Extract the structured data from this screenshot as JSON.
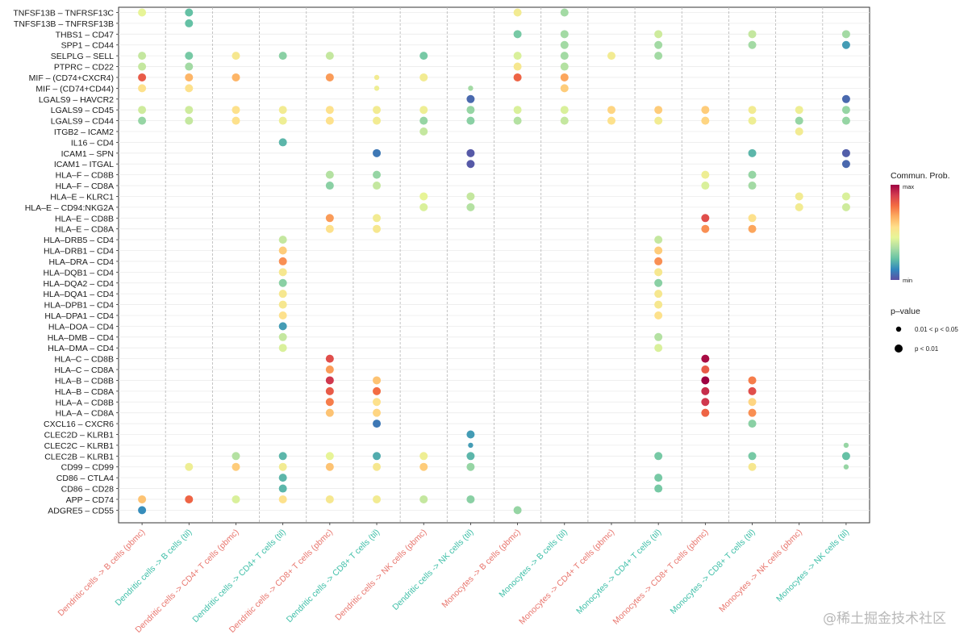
{
  "chart_data": {
    "type": "scatter",
    "title": "",
    "xlabel": "",
    "ylabel": "",
    "grid": true,
    "legend_position": "right",
    "categories": [
      "Dendritic cells -> B cells (pbmc)",
      "Dendritic cells -> B cells (til)",
      "Dendritic cells -> CD4+ T cells (pbmc)",
      "Dendritic cells -> CD4+ T cells (til)",
      "Dendritic cells -> CD8+ T cells (pbmc)",
      "Dendritic cells -> CD8+ T cells (til)",
      "Dendritic cells -> NK cells (pbmc)",
      "Dendritic cells -> NK cells (til)",
      "Monocytes -> B cells (pbmc)",
      "Monocytes -> B cells (til)",
      "Monocytes -> CD4+ T cells (pbmc)",
      "Monocytes -> CD4+ T cells (til)",
      "Monocytes -> CD8+ T cells (pbmc)",
      "Monocytes -> CD8+ T cells (til)",
      "Monocytes -> NK cells (pbmc)",
      "Monocytes -> NK cells (til)"
    ],
    "category_colors": [
      "#e8766e",
      "#3fbfa8",
      "#e8766e",
      "#3fbfa8",
      "#e8766e",
      "#3fbfa8",
      "#e8766e",
      "#3fbfa8",
      "#e8766e",
      "#3fbfa8",
      "#e8766e",
      "#3fbfa8",
      "#e8766e",
      "#3fbfa8",
      "#e8766e",
      "#3fbfa8"
    ],
    "pairs": [
      "TNFSF13B – TNFRSF13C",
      "TNFSF13B – TNFRSF13B",
      "THBS1 – CD47",
      "SPP1 – CD44",
      "SELPLG – SELL",
      "PTPRC – CD22",
      "MIF – (CD74+CXCR4)",
      "MIF – (CD74+CD44)",
      "LGALS9 – HAVCR2",
      "LGALS9 – CD45",
      "LGALS9 – CD44",
      "ITGB2 – ICAM2",
      "IL16 – CD4",
      "ICAM1 – SPN",
      "ICAM1 – ITGAL",
      "HLA–F – CD8B",
      "HLA–F – CD8A",
      "HLA–E – KLRC1",
      "HLA–E – CD94:NKG2A",
      "HLA–E – CD8B",
      "HLA–E – CD8A",
      "HLA–DRB5 – CD4",
      "HLA–DRB1 – CD4",
      "HLA–DRA – CD4",
      "HLA–DQB1 – CD4",
      "HLA–DQA2 – CD4",
      "HLA–DQA1 – CD4",
      "HLA–DPB1 – CD4",
      "HLA–DPA1 – CD4",
      "HLA–DOA – CD4",
      "HLA–DMB – CD4",
      "HLA–DMA – CD4",
      "HLA–C – CD8B",
      "HLA–C – CD8A",
      "HLA–B – CD8B",
      "HLA–B – CD8A",
      "HLA–A – CD8B",
      "HLA–A – CD8A",
      "CXCL16 – CXCR6",
      "CLEC2D – KLRB1",
      "CLEC2C – KLRB1",
      "CLEC2B – KLRB1",
      "CD99 – CD99",
      "CD86 – CTLA4",
      "CD86 – CD28",
      "APP – CD74",
      "ADGRE5 – CD55"
    ],
    "points_note": "[x, y, prob, size] with x = category index, y = pair index, prob = communication probability on a 0 (min) .. 1 (max) scale, size 1 = p < 0.01, 0 = 0.01 < p < 0.05",
    "points": [
      [
        0,
        0,
        0.45,
        1
      ],
      [
        1,
        0,
        0.22,
        1
      ],
      [
        8,
        0,
        0.5,
        1
      ],
      [
        9,
        0,
        0.32,
        1
      ],
      [
        1,
        1,
        0.22,
        1
      ],
      [
        8,
        2,
        0.25,
        1
      ],
      [
        9,
        2,
        0.32,
        1
      ],
      [
        11,
        2,
        0.4,
        1
      ],
      [
        13,
        2,
        0.38,
        1
      ],
      [
        15,
        2,
        0.32,
        1
      ],
      [
        9,
        3,
        0.32,
        1
      ],
      [
        11,
        3,
        0.32,
        1
      ],
      [
        13,
        3,
        0.32,
        1
      ],
      [
        15,
        3,
        0.15,
        1
      ],
      [
        0,
        4,
        0.38,
        1
      ],
      [
        1,
        4,
        0.25,
        1
      ],
      [
        2,
        4,
        0.52,
        1
      ],
      [
        3,
        4,
        0.28,
        1
      ],
      [
        4,
        4,
        0.38,
        1
      ],
      [
        6,
        4,
        0.25,
        1
      ],
      [
        8,
        4,
        0.42,
        1
      ],
      [
        9,
        4,
        0.32,
        1
      ],
      [
        10,
        4,
        0.5,
        1
      ],
      [
        11,
        4,
        0.32,
        1
      ],
      [
        0,
        5,
        0.38,
        1
      ],
      [
        1,
        5,
        0.32,
        1
      ],
      [
        8,
        5,
        0.52,
        1
      ],
      [
        9,
        5,
        0.35,
        1
      ],
      [
        0,
        6,
        0.82,
        1
      ],
      [
        1,
        6,
        0.65,
        1
      ],
      [
        2,
        6,
        0.65,
        1
      ],
      [
        4,
        6,
        0.7,
        1
      ],
      [
        5,
        6,
        0.5,
        0
      ],
      [
        6,
        6,
        0.5,
        1
      ],
      [
        8,
        6,
        0.8,
        1
      ],
      [
        9,
        6,
        0.68,
        1
      ],
      [
        0,
        7,
        0.55,
        1
      ],
      [
        1,
        7,
        0.55,
        1
      ],
      [
        5,
        7,
        0.48,
        0
      ],
      [
        7,
        7,
        0.32,
        0
      ],
      [
        9,
        7,
        0.6,
        1
      ],
      [
        7,
        8,
        0.05,
        1
      ],
      [
        15,
        8,
        0.05,
        1
      ],
      [
        0,
        9,
        0.4,
        1
      ],
      [
        1,
        9,
        0.4,
        1
      ],
      [
        2,
        9,
        0.55,
        1
      ],
      [
        3,
        9,
        0.5,
        1
      ],
      [
        4,
        9,
        0.55,
        1
      ],
      [
        5,
        9,
        0.5,
        1
      ],
      [
        6,
        9,
        0.48,
        1
      ],
      [
        7,
        9,
        0.3,
        1
      ],
      [
        8,
        9,
        0.42,
        1
      ],
      [
        9,
        9,
        0.42,
        1
      ],
      [
        10,
        9,
        0.58,
        1
      ],
      [
        11,
        9,
        0.6,
        1
      ],
      [
        12,
        9,
        0.6,
        1
      ],
      [
        13,
        9,
        0.5,
        1
      ],
      [
        14,
        9,
        0.48,
        1
      ],
      [
        15,
        9,
        0.3,
        1
      ],
      [
        0,
        10,
        0.3,
        1
      ],
      [
        1,
        10,
        0.38,
        1
      ],
      [
        2,
        10,
        0.55,
        1
      ],
      [
        3,
        10,
        0.48,
        1
      ],
      [
        4,
        10,
        0.55,
        1
      ],
      [
        5,
        10,
        0.5,
        1
      ],
      [
        6,
        10,
        0.3,
        1
      ],
      [
        7,
        10,
        0.28,
        1
      ],
      [
        8,
        10,
        0.35,
        1
      ],
      [
        9,
        10,
        0.38,
        1
      ],
      [
        10,
        10,
        0.55,
        1
      ],
      [
        11,
        10,
        0.5,
        1
      ],
      [
        12,
        10,
        0.58,
        1
      ],
      [
        13,
        10,
        0.48,
        1
      ],
      [
        14,
        10,
        0.3,
        1
      ],
      [
        15,
        10,
        0.3,
        1
      ],
      [
        6,
        11,
        0.38,
        1
      ],
      [
        14,
        11,
        0.5,
        1
      ],
      [
        3,
        12,
        0.2,
        1
      ],
      [
        5,
        13,
        0.08,
        1
      ],
      [
        7,
        13,
        0.02,
        1
      ],
      [
        13,
        13,
        0.2,
        1
      ],
      [
        15,
        13,
        0.03,
        1
      ],
      [
        7,
        14,
        0.02,
        1
      ],
      [
        15,
        14,
        0.05,
        1
      ],
      [
        4,
        15,
        0.35,
        1
      ],
      [
        5,
        15,
        0.3,
        1
      ],
      [
        12,
        15,
        0.48,
        1
      ],
      [
        13,
        15,
        0.3,
        1
      ],
      [
        4,
        16,
        0.28,
        1
      ],
      [
        5,
        16,
        0.38,
        1
      ],
      [
        12,
        16,
        0.42,
        1
      ],
      [
        13,
        16,
        0.32,
        1
      ],
      [
        6,
        17,
        0.45,
        1
      ],
      [
        7,
        17,
        0.38,
        1
      ],
      [
        14,
        17,
        0.5,
        1
      ],
      [
        15,
        17,
        0.42,
        1
      ],
      [
        6,
        18,
        0.42,
        1
      ],
      [
        7,
        18,
        0.35,
        1
      ],
      [
        14,
        18,
        0.5,
        1
      ],
      [
        15,
        18,
        0.4,
        1
      ],
      [
        4,
        19,
        0.7,
        1
      ],
      [
        5,
        19,
        0.5,
        1
      ],
      [
        12,
        19,
        0.85,
        1
      ],
      [
        13,
        19,
        0.55,
        1
      ],
      [
        4,
        20,
        0.55,
        1
      ],
      [
        5,
        20,
        0.52,
        1
      ],
      [
        12,
        20,
        0.72,
        1
      ],
      [
        13,
        20,
        0.68,
        1
      ],
      [
        3,
        21,
        0.38,
        1
      ],
      [
        11,
        21,
        0.38,
        1
      ],
      [
        3,
        22,
        0.6,
        1
      ],
      [
        11,
        22,
        0.6,
        1
      ],
      [
        3,
        23,
        0.72,
        1
      ],
      [
        11,
        23,
        0.72,
        1
      ],
      [
        3,
        24,
        0.52,
        1
      ],
      [
        11,
        24,
        0.52,
        1
      ],
      [
        3,
        25,
        0.28,
        1
      ],
      [
        11,
        25,
        0.28,
        1
      ],
      [
        3,
        26,
        0.52,
        1
      ],
      [
        11,
        26,
        0.52,
        1
      ],
      [
        3,
        27,
        0.52,
        1
      ],
      [
        11,
        27,
        0.52,
        1
      ],
      [
        3,
        28,
        0.55,
        1
      ],
      [
        11,
        28,
        0.55,
        1
      ],
      [
        3,
        29,
        0.15,
        1
      ],
      [
        3,
        30,
        0.38,
        1
      ],
      [
        11,
        30,
        0.35,
        1
      ],
      [
        3,
        31,
        0.42,
        1
      ],
      [
        11,
        31,
        0.42,
        1
      ],
      [
        4,
        32,
        0.85,
        1
      ],
      [
        12,
        32,
        0.98,
        1
      ],
      [
        4,
        33,
        0.7,
        1
      ],
      [
        12,
        33,
        0.82,
        1
      ],
      [
        4,
        34,
        0.9,
        1
      ],
      [
        5,
        34,
        0.62,
        1
      ],
      [
        12,
        34,
        1.0,
        1
      ],
      [
        13,
        34,
        0.75,
        1
      ],
      [
        4,
        35,
        0.82,
        1
      ],
      [
        5,
        35,
        0.78,
        1
      ],
      [
        12,
        35,
        0.92,
        1
      ],
      [
        13,
        35,
        0.85,
        1
      ],
      [
        4,
        36,
        0.75,
        1
      ],
      [
        5,
        36,
        0.55,
        1
      ],
      [
        12,
        36,
        0.9,
        1
      ],
      [
        13,
        36,
        0.58,
        1
      ],
      [
        4,
        37,
        0.62,
        1
      ],
      [
        5,
        37,
        0.58,
        1
      ],
      [
        12,
        37,
        0.8,
        1
      ],
      [
        13,
        37,
        0.72,
        1
      ],
      [
        5,
        38,
        0.08,
        1
      ],
      [
        13,
        38,
        0.28,
        1
      ],
      [
        7,
        39,
        0.15,
        1
      ],
      [
        7,
        40,
        0.15,
        0
      ],
      [
        15,
        40,
        0.3,
        0
      ],
      [
        2,
        41,
        0.35,
        1
      ],
      [
        3,
        41,
        0.2,
        1
      ],
      [
        4,
        41,
        0.45,
        1
      ],
      [
        5,
        41,
        0.18,
        1
      ],
      [
        6,
        41,
        0.48,
        1
      ],
      [
        7,
        41,
        0.2,
        1
      ],
      [
        11,
        41,
        0.25,
        1
      ],
      [
        13,
        41,
        0.25,
        1
      ],
      [
        15,
        41,
        0.22,
        1
      ],
      [
        1,
        42,
        0.48,
        1
      ],
      [
        2,
        42,
        0.6,
        1
      ],
      [
        3,
        42,
        0.5,
        1
      ],
      [
        4,
        42,
        0.62,
        1
      ],
      [
        5,
        42,
        0.52,
        1
      ],
      [
        6,
        42,
        0.6,
        1
      ],
      [
        7,
        42,
        0.3,
        1
      ],
      [
        13,
        42,
        0.52,
        1
      ],
      [
        15,
        42,
        0.3,
        0
      ],
      [
        3,
        43,
        0.2,
        1
      ],
      [
        11,
        43,
        0.25,
        1
      ],
      [
        3,
        44,
        0.2,
        1
      ],
      [
        11,
        44,
        0.25,
        1
      ],
      [
        0,
        45,
        0.62,
        1
      ],
      [
        1,
        45,
        0.8,
        1
      ],
      [
        2,
        45,
        0.42,
        1
      ],
      [
        3,
        45,
        0.55,
        1
      ],
      [
        4,
        45,
        0.52,
        1
      ],
      [
        5,
        45,
        0.5,
        1
      ],
      [
        6,
        45,
        0.38,
        1
      ],
      [
        7,
        45,
        0.28,
        1
      ],
      [
        0,
        46,
        0.12,
        1
      ],
      [
        8,
        46,
        0.3,
        1
      ]
    ],
    "colorbar": {
      "title": "Commun. Prob.",
      "max_label": "max",
      "min_label": "min",
      "colors": [
        "#5e4fa2",
        "#3288bd",
        "#66c2a5",
        "#abdda4",
        "#e6f598",
        "#fee08b",
        "#fdae61",
        "#f46d43",
        "#d53e4f",
        "#9e0142"
      ]
    },
    "size_legend": {
      "title": "p–value",
      "items": [
        "0.01 < p < 0.05",
        "p < 0.01"
      ]
    }
  }
}
